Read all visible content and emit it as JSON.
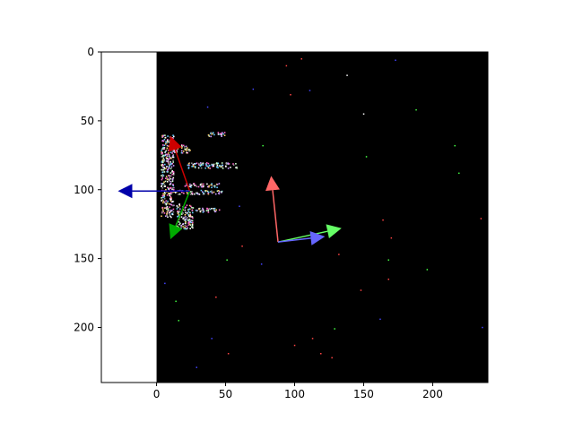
{
  "chart_data": {
    "type": "scatter",
    "title": "",
    "xlabel": "",
    "ylabel": "",
    "xlim": [
      -40,
      240
    ],
    "ylim": [
      240,
      0
    ],
    "y_axis_inverted": true,
    "grid": false,
    "background_image": {
      "description_value_extent": [
        0,
        240,
        240,
        0
      ],
      "background_color": "#000000"
    },
    "xticks": [
      {
        "value": 0,
        "label": "0"
      },
      {
        "value": 50,
        "label": "50"
      },
      {
        "value": 100,
        "label": "100"
      },
      {
        "value": 150,
        "label": "150"
      },
      {
        "value": 200,
        "label": "200"
      }
    ],
    "yticks": [
      {
        "value": 0,
        "label": "0"
      },
      {
        "value": 50,
        "label": "50"
      },
      {
        "value": 100,
        "label": "100"
      },
      {
        "value": 150,
        "label": "150"
      },
      {
        "value": 200,
        "label": "200"
      }
    ],
    "arrow_groups": [
      {
        "origin": [
          24,
          101
        ],
        "arrows": [
          {
            "to": [
              10,
              61
            ],
            "color": "#cc0000"
          },
          {
            "to": [
              10,
              136
            ],
            "color": "#00aa00"
          },
          {
            "to": [
              -28,
              101
            ],
            "color": "#0000aa"
          }
        ]
      },
      {
        "origin": [
          88,
          138
        ],
        "arrows": [
          {
            "to": [
              83,
              90
            ],
            "color": "#ff6666"
          },
          {
            "to": [
              134,
              128
            ],
            "color": "#66ff66"
          },
          {
            "to": [
              122,
              134
            ],
            "color": "#6666ff"
          }
        ]
      }
    ],
    "feature_blobs": [
      {
        "x": 3,
        "y": 60,
        "w": 9,
        "h": 60
      },
      {
        "x": 12,
        "y": 67,
        "w": 12,
        "h": 6
      },
      {
        "x": 22,
        "y": 80,
        "w": 36,
        "h": 4
      },
      {
        "x": 20,
        "y": 95,
        "w": 25,
        "h": 3
      },
      {
        "x": 12,
        "y": 100,
        "w": 35,
        "h": 3
      },
      {
        "x": 28,
        "y": 113,
        "w": 18,
        "h": 3
      },
      {
        "x": 37,
        "y": 58,
        "w": 12,
        "h": 3
      },
      {
        "x": 14,
        "y": 110,
        "w": 12,
        "h": 18
      }
    ],
    "noise_points": [
      {
        "x": 94,
        "y": 10,
        "color": "#ff4444"
      },
      {
        "x": 105,
        "y": 5,
        "color": "#ff4444"
      },
      {
        "x": 70,
        "y": 27,
        "color": "#4444ff"
      },
      {
        "x": 97,
        "y": 31,
        "color": "#ff4444"
      },
      {
        "x": 111,
        "y": 28,
        "color": "#4444ff"
      },
      {
        "x": 138,
        "y": 17,
        "color": "#ffffff"
      },
      {
        "x": 173,
        "y": 6,
        "color": "#4444ff"
      },
      {
        "x": 188,
        "y": 42,
        "color": "#44ff44"
      },
      {
        "x": 37,
        "y": 40,
        "color": "#4444ff"
      },
      {
        "x": 77,
        "y": 68,
        "color": "#44ff44"
      },
      {
        "x": 152,
        "y": 76,
        "color": "#44ff44"
      },
      {
        "x": 216,
        "y": 68,
        "color": "#44ff44"
      },
      {
        "x": 219,
        "y": 88,
        "color": "#44ff44"
      },
      {
        "x": 235,
        "y": 121,
        "color": "#ff4444"
      },
      {
        "x": 164,
        "y": 122,
        "color": "#ff4444"
      },
      {
        "x": 170,
        "y": 135,
        "color": "#ff4444"
      },
      {
        "x": 62,
        "y": 141,
        "color": "#ff4444"
      },
      {
        "x": 51,
        "y": 151,
        "color": "#44ff44"
      },
      {
        "x": 76,
        "y": 154,
        "color": "#4444ff"
      },
      {
        "x": 168,
        "y": 151,
        "color": "#44ff44"
      },
      {
        "x": 196,
        "y": 158,
        "color": "#44ff44"
      },
      {
        "x": 168,
        "y": 165,
        "color": "#ff4444"
      },
      {
        "x": 6,
        "y": 168,
        "color": "#4444ff"
      },
      {
        "x": 148,
        "y": 173,
        "color": "#ff4444"
      },
      {
        "x": 43,
        "y": 178,
        "color": "#ff4444"
      },
      {
        "x": 14,
        "y": 181,
        "color": "#44ff44"
      },
      {
        "x": 16,
        "y": 195,
        "color": "#44ff44"
      },
      {
        "x": 162,
        "y": 194,
        "color": "#4444ff"
      },
      {
        "x": 129,
        "y": 201,
        "color": "#44ff44"
      },
      {
        "x": 236,
        "y": 200,
        "color": "#4444ff"
      },
      {
        "x": 40,
        "y": 208,
        "color": "#4444ff"
      },
      {
        "x": 113,
        "y": 208,
        "color": "#ff4444"
      },
      {
        "x": 100,
        "y": 213,
        "color": "#ff4444"
      },
      {
        "x": 119,
        "y": 219,
        "color": "#ff4444"
      },
      {
        "x": 127,
        "y": 222,
        "color": "#ff4444"
      },
      {
        "x": 52,
        "y": 219,
        "color": "#ff4444"
      },
      {
        "x": 29,
        "y": 229,
        "color": "#4444ff"
      },
      {
        "x": 132,
        "y": 147,
        "color": "#ff4444"
      },
      {
        "x": 150,
        "y": 45,
        "color": "#ffffff"
      },
      {
        "x": 60,
        "y": 112,
        "color": "#4444ff"
      }
    ]
  }
}
